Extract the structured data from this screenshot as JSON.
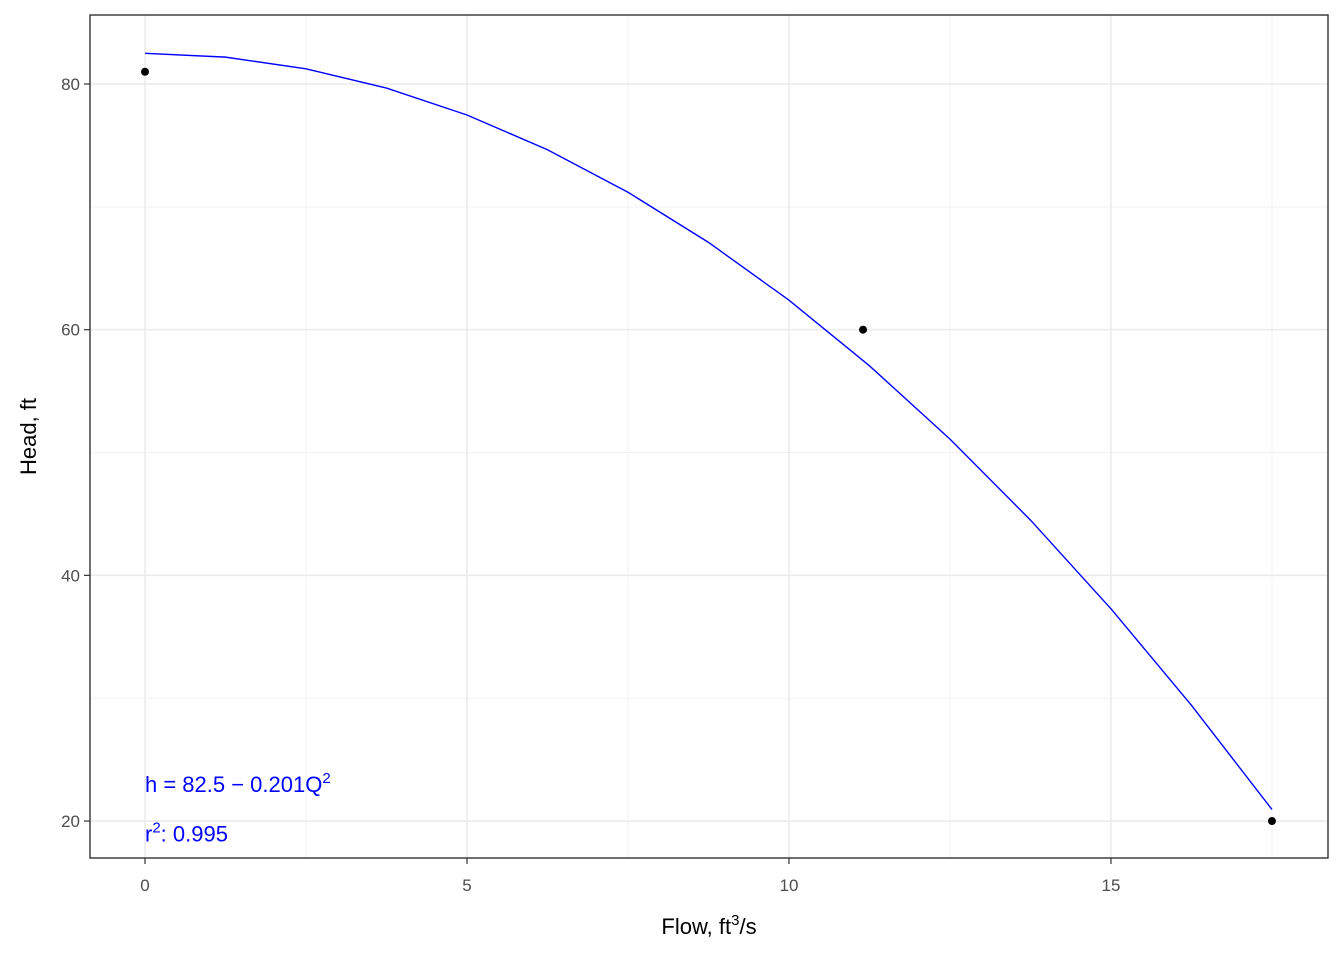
{
  "chart_data": {
    "type": "scatter",
    "xlabel": {
      "base": "Flow,  ft",
      "sup": "3",
      "rest": "/s"
    },
    "ylabel": "Head, ft",
    "xlim": [
      -0.854,
      18.37
    ],
    "ylim": [
      16.99,
      85.62
    ],
    "xticks": [
      0,
      5,
      10,
      15
    ],
    "yticks": [
      20,
      40,
      60,
      80
    ],
    "xminor": [
      2.5,
      7.5,
      12.5,
      17.5
    ],
    "yminor": [
      30,
      50,
      70
    ],
    "grid": true,
    "series": [
      {
        "color": "#000000",
        "x": [
          0,
          11.15,
          17.5
        ],
        "values": [
          81,
          60,
          20
        ]
      }
    ],
    "fit": {
      "color": "#0000ff",
      "x": [
        0,
        1.25,
        2.5,
        3.75,
        5,
        6.25,
        7.5,
        8.75,
        10,
        11.25,
        12.5,
        13.75,
        15,
        16.25,
        17.5
      ],
      "values": [
        82.5,
        82.19,
        81.24,
        79.67,
        77.48,
        74.65,
        71.19,
        67.11,
        62.4,
        57.06,
        51.09,
        44.5,
        37.28,
        29.42,
        20.94
      ]
    },
    "annotations": [
      {
        "base": "h = 82.5 − 0.201Q",
        "sup": "2",
        "x": 0,
        "y": 23
      },
      {
        "base": "r",
        "sup": "2",
        "rest": ": 0.995",
        "x": 0,
        "y": 19
      }
    ]
  }
}
